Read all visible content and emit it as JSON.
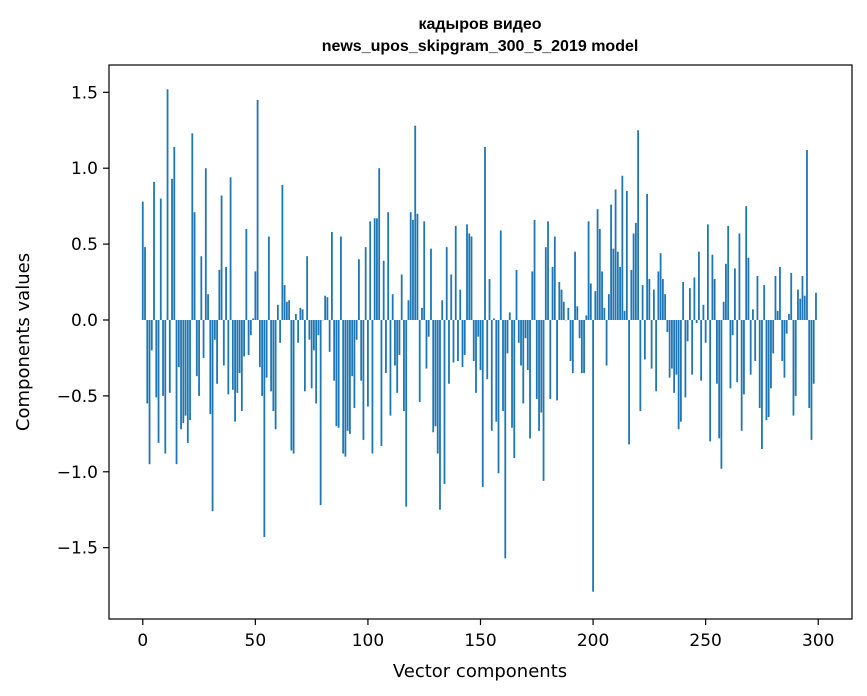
{
  "chart_data": {
    "type": "bar",
    "title": "кадыров видео",
    "subtitle": "news_upos_skipgram_300_5_2019 model",
    "xlabel": "Vector components",
    "ylabel": "Components values",
    "xlim": [
      -15,
      315
    ],
    "ylim": [
      -1.97,
      1.68
    ],
    "xticks": [
      0,
      50,
      100,
      150,
      200,
      250,
      300
    ],
    "yticks": [
      -1.5,
      -1.0,
      -0.5,
      0.0,
      0.5,
      1.0,
      1.5
    ],
    "ytick_labels": [
      "−1.5",
      "−1.0",
      "−0.5",
      "0.0",
      "0.5",
      "1.0",
      "1.5"
    ],
    "xtick_labels": [
      "0",
      "50",
      "100",
      "150",
      "200",
      "250",
      "300"
    ],
    "bar_color": "#1f77b4",
    "grid": false,
    "x_start": 0,
    "values": [
      0.78,
      0.48,
      -0.55,
      -0.95,
      -0.2,
      0.91,
      -0.51,
      -0.81,
      0.8,
      -0.5,
      -0.88,
      1.52,
      -0.48,
      0.93,
      1.14,
      -0.95,
      -0.31,
      -0.72,
      -0.68,
      -0.63,
      -0.81,
      -0.66,
      1.23,
      0.71,
      -0.37,
      -0.5,
      0.42,
      -0.25,
      1.0,
      0.17,
      -0.62,
      -1.26,
      -0.13,
      -0.42,
      0.33,
      0.82,
      -0.3,
      0.35,
      -0.49,
      0.94,
      -0.46,
      -0.67,
      -0.48,
      -0.35,
      -0.6,
      -0.24,
      0.6,
      -0.23,
      -0.1,
      0.01,
      0.32,
      1.45,
      -0.31,
      -0.5,
      -1.43,
      -0.38,
      0.55,
      -0.47,
      -0.6,
      -0.72,
      0.1,
      -0.15,
      0.89,
      0.23,
      0.12,
      0.13,
      -0.86,
      -0.88,
      0.04,
      -0.15,
      0.08,
      0.07,
      -0.47,
      0.42,
      -0.13,
      -0.45,
      -0.2,
      -0.55,
      -0.1,
      -1.22,
      0.0,
      0.16,
      0.15,
      -0.21,
      0.58,
      -0.4,
      -0.7,
      -0.71,
      0.55,
      -0.88,
      -0.9,
      -0.73,
      -0.75,
      -0.37,
      -0.58,
      -0.13,
      0.4,
      -0.4,
      -0.79,
      0.48,
      -0.57,
      0.65,
      -0.88,
      0.67,
      0.67,
      1.0,
      -0.83,
      0.39,
      -0.35,
      0.71,
      -0.63,
      0.17,
      -0.3,
      -0.48,
      -0.23,
      0.3,
      -0.6,
      -1.23,
      0.13,
      0.71,
      0.66,
      1.28,
      0.7,
      -0.54,
      0.08,
      0.65,
      -0.32,
      -0.11,
      0.47,
      -0.74,
      -0.7,
      -0.88,
      -1.25,
      0.13,
      -1.08,
      0.48,
      -0.42,
      0.3,
      -0.28,
      0.62,
      -0.27,
      0.2,
      -0.31,
      -0.23,
      0.63,
      0.57,
      0.55,
      -0.27,
      -0.48,
      -0.11,
      -0.33,
      -1.1,
      1.14,
      -0.39,
      0.27,
      -0.73,
      0.01,
      -0.67,
      -1.01,
      0.59,
      -0.6,
      -1.57,
      -0.22,
      0.05,
      -0.71,
      -0.91,
      0.33,
      -0.15,
      -0.3,
      -0.55,
      -0.12,
      -0.33,
      -0.78,
      0.32,
      0.66,
      -0.52,
      -0.73,
      -0.61,
      -1.06,
      0.48,
      0.65,
      -0.52,
      0.35,
      0.55,
      -0.53,
      0.25,
      0.2,
      0.12,
      0.0,
      0.08,
      -0.27,
      -0.35,
      0.45,
      0.09,
      -0.12,
      -0.35,
      -0.35,
      0.03,
      0.65,
      0.24,
      -1.79,
      0.19,
      0.73,
      0.6,
      0.32,
      0.08,
      -0.3,
      0.17,
      0.76,
      0.47,
      0.86,
      0.45,
      0.35,
      0.95,
      0.06,
      0.85,
      -0.82,
      0.33,
      0.57,
      0.64,
      1.25,
      -0.6,
      0.23,
      -0.26,
      0.83,
      0.27,
      -0.32,
      0.2,
      -0.47,
      0.32,
      0.44,
      0.27,
      0.17,
      -0.08,
      -0.38,
      -0.32,
      -0.48,
      -0.36,
      -0.72,
      -0.67,
      0.25,
      -0.51,
      -0.14,
      0.21,
      -0.36,
      0.28,
      -0.02,
      0.45,
      -0.4,
      0.1,
      -0.15,
      0.63,
      -0.8,
      0.43,
      0.27,
      -0.42,
      -0.78,
      -0.98,
      0.12,
      0.37,
      0.62,
      -0.45,
      -0.1,
      0.34,
      -0.41,
      0.57,
      -0.73,
      -0.49,
      0.75,
      0.41,
      -0.36,
      0.07,
      -0.27,
      0.29,
      -0.58,
      -0.85,
      0.23,
      -0.66,
      -0.64,
      -0.45,
      -0.22,
      0.29,
      0.06,
      0.35,
      -0.27,
      -0.38,
      -0.09,
      0.04,
      0.31,
      -0.63,
      -0.5,
      0.2,
      0.14,
      0.29,
      0.16,
      1.12,
      -0.58,
      -0.79,
      -0.42,
      0.18
    ]
  }
}
